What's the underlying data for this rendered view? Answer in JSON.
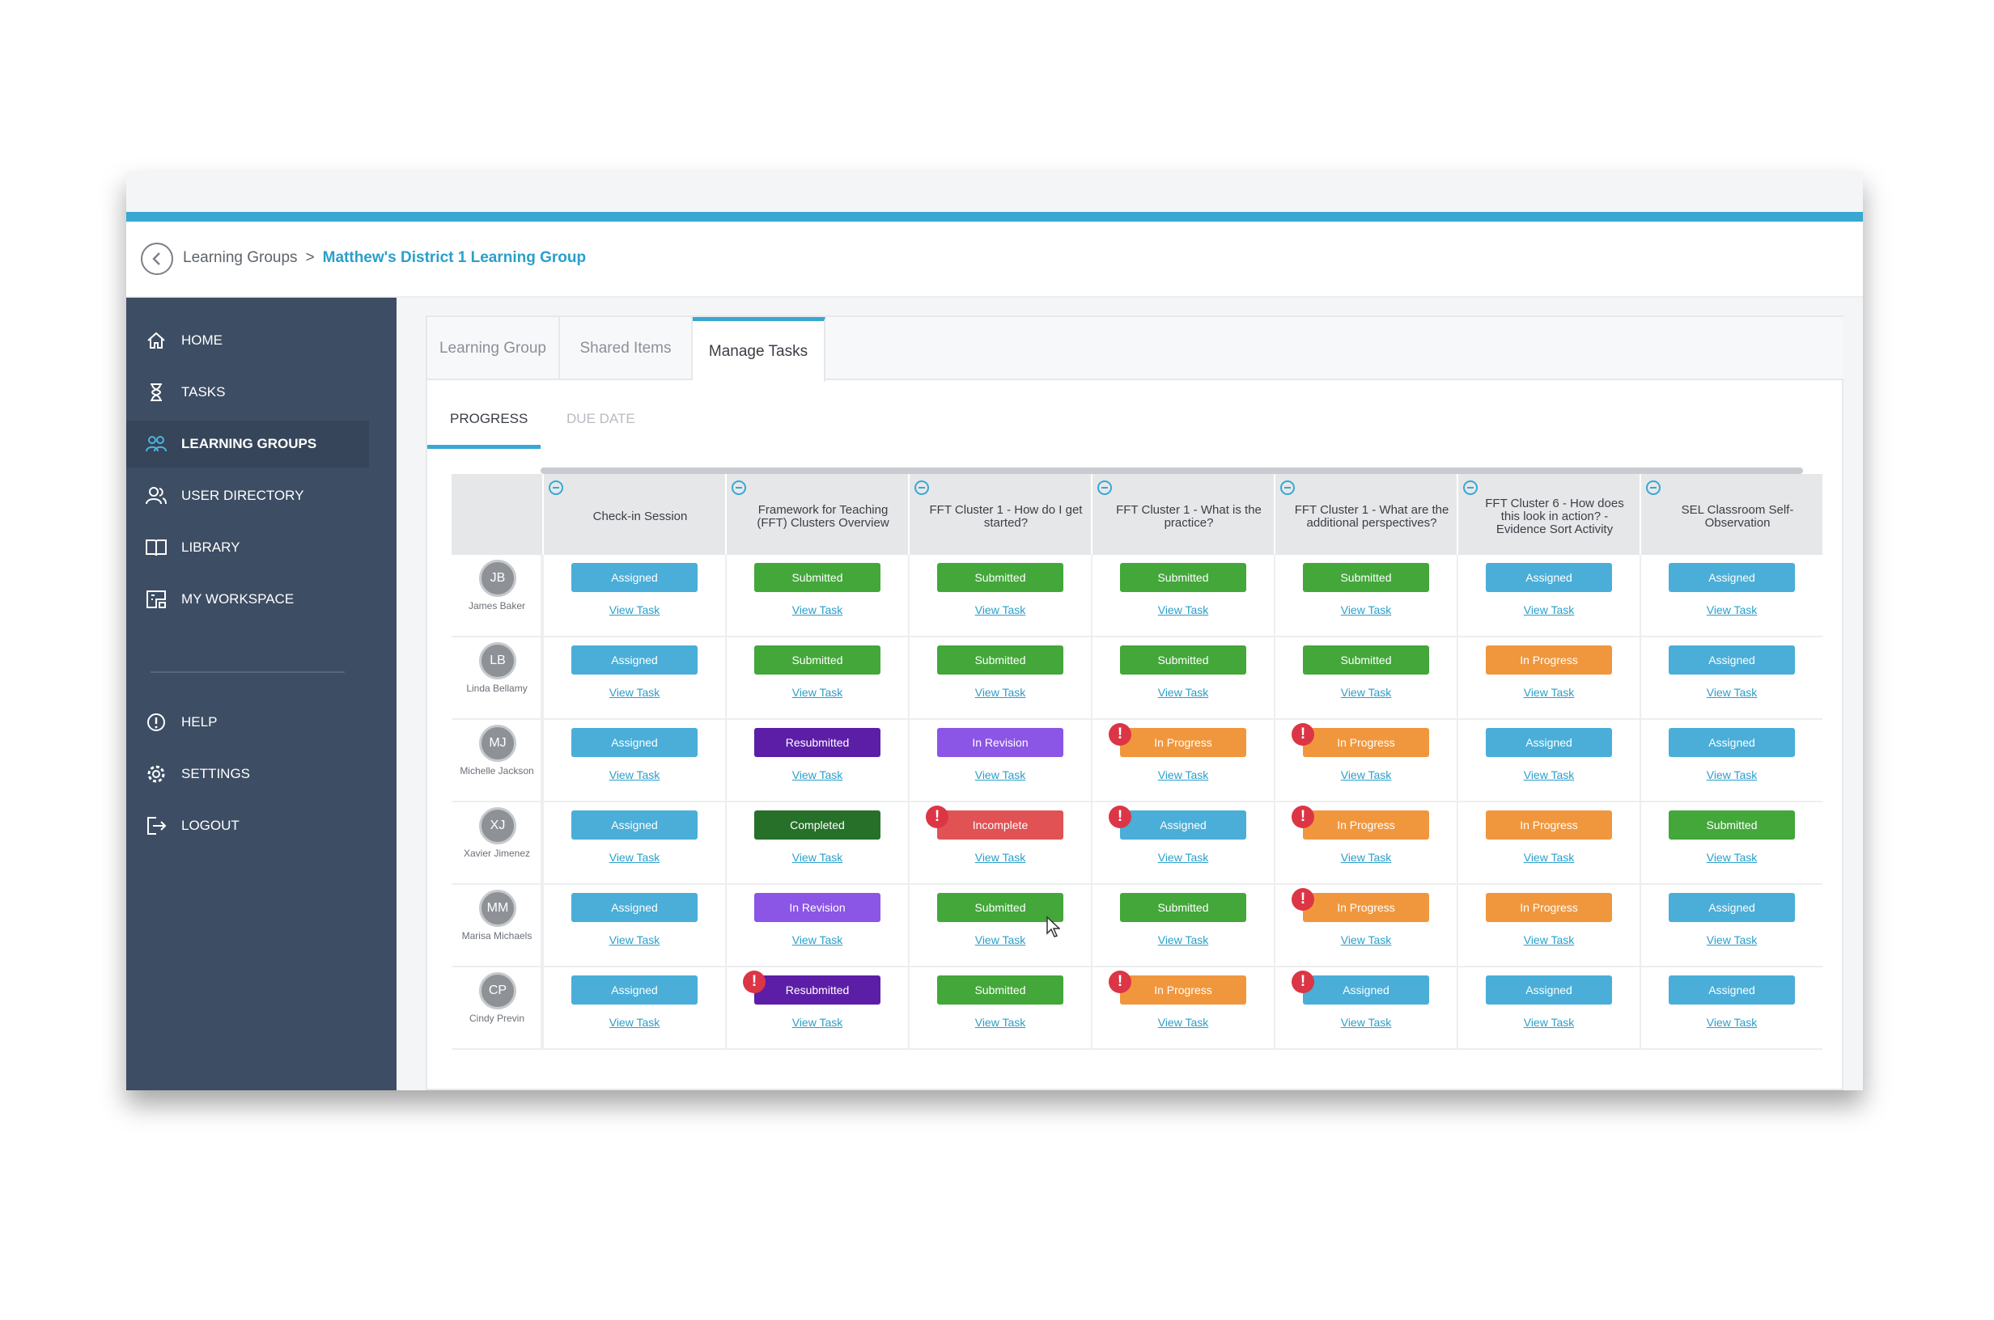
{
  "breadcrumb": {
    "root": "Learning Groups",
    "separator": ">",
    "current": "Matthew's District 1 Learning Group"
  },
  "sidebar": {
    "items": [
      {
        "label": "HOME",
        "icon": "home-icon"
      },
      {
        "label": "TASKS",
        "icon": "hourglass-icon"
      },
      {
        "label": "LEARNING GROUPS",
        "icon": "group-icon",
        "active": true
      },
      {
        "label": "USER DIRECTORY",
        "icon": "users-icon"
      },
      {
        "label": "LIBRARY",
        "icon": "book-icon"
      },
      {
        "label": "MY WORKSPACE",
        "icon": "workspace-icon"
      },
      {
        "label": "HELP",
        "icon": "help-icon"
      },
      {
        "label": "SETTINGS",
        "icon": "gear-icon"
      },
      {
        "label": "LOGOUT",
        "icon": "logout-icon"
      }
    ]
  },
  "tabs": [
    "Learning Group",
    "Shared Items",
    "Manage Tasks"
  ],
  "active_tab": "Manage Tasks",
  "subtabs": [
    "PROGRESS",
    "DUE DATE"
  ],
  "active_subtab": "PROGRESS",
  "columns": [
    "Check-in Session",
    "Framework for Teaching (FFT) Clusters Overview",
    "FFT Cluster 1 - How do I get started?",
    "FFT Cluster 1 - What is the practice?",
    "FFT Cluster 1 - What are the additional perspectives?",
    "FFT Cluster 6 - How does this look in action? - Evidence Sort Activity",
    "SEL Classroom Self-Observation"
  ],
  "view_label": "View Task",
  "status_colors": {
    "Assigned": "#4aaed8",
    "Submitted": "#43a73a",
    "In Progress": "#f0973e",
    "Resubmitted": "#5d1ea7",
    "In Revision": "#8b55e6",
    "Completed": "#26702a",
    "Incomplete": "#e05254"
  },
  "rows": [
    {
      "initials": "JB",
      "name": "James Baker",
      "cells": [
        {
          "status": "Assigned"
        },
        {
          "status": "Submitted"
        },
        {
          "status": "Submitted"
        },
        {
          "status": "Submitted"
        },
        {
          "status": "Submitted"
        },
        {
          "status": "Assigned"
        },
        {
          "status": "Assigned"
        }
      ]
    },
    {
      "initials": "LB",
      "name": "Linda Bellamy",
      "cells": [
        {
          "status": "Assigned"
        },
        {
          "status": "Submitted"
        },
        {
          "status": "Submitted"
        },
        {
          "status": "Submitted"
        },
        {
          "status": "Submitted"
        },
        {
          "status": "In Progress"
        },
        {
          "status": "Assigned"
        }
      ]
    },
    {
      "initials": "MJ",
      "name": "Michelle Jackson",
      "cells": [
        {
          "status": "Assigned"
        },
        {
          "status": "Resubmitted"
        },
        {
          "status": "In Revision"
        },
        {
          "status": "In Progress",
          "alert": true
        },
        {
          "status": "In Progress",
          "alert": true
        },
        {
          "status": "Assigned"
        },
        {
          "status": "Assigned"
        }
      ]
    },
    {
      "initials": "XJ",
      "name": "Xavier Jimenez",
      "cells": [
        {
          "status": "Assigned"
        },
        {
          "status": "Completed"
        },
        {
          "status": "Incomplete",
          "alert": true
        },
        {
          "status": "Assigned",
          "alert": true
        },
        {
          "status": "In Progress",
          "alert": true
        },
        {
          "status": "In Progress"
        },
        {
          "status": "Submitted"
        }
      ]
    },
    {
      "initials": "MM",
      "name": "Marisa Michaels",
      "cells": [
        {
          "status": "Assigned"
        },
        {
          "status": "In Revision"
        },
        {
          "status": "Submitted"
        },
        {
          "status": "Submitted"
        },
        {
          "status": "In Progress",
          "alert": true
        },
        {
          "status": "In Progress"
        },
        {
          "status": "Assigned"
        }
      ]
    },
    {
      "initials": "CP",
      "name": "Cindy Previn",
      "cells": [
        {
          "status": "Assigned"
        },
        {
          "status": "Resubmitted",
          "alert": true
        },
        {
          "status": "Submitted"
        },
        {
          "status": "In Progress",
          "alert": true
        },
        {
          "status": "Assigned",
          "alert": true
        },
        {
          "status": "Assigned"
        },
        {
          "status": "Assigned"
        }
      ]
    }
  ]
}
